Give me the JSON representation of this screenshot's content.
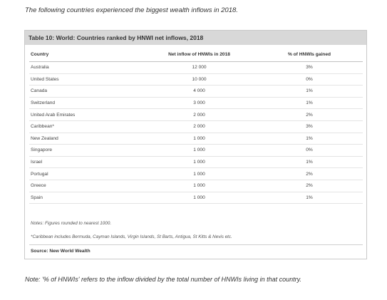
{
  "intro_text": "The following countries experienced the biggest wealth inflows in 2018.",
  "table": {
    "title": "Table 10: World: Countries ranked by HNWI net inflows, 2018",
    "headers": [
      "Country",
      "Net inflow of HNWIs in 2018",
      "% of HNWIs gained"
    ],
    "rows": [
      [
        "Australia",
        "12 000",
        "3%"
      ],
      [
        "United States",
        "10 000",
        "0%"
      ],
      [
        "Canada",
        "4 000",
        "1%"
      ],
      [
        "Switzerland",
        "3 000",
        "1%"
      ],
      [
        "United Arab Emirates",
        "2 000",
        "2%"
      ],
      [
        "Caribbean*",
        "2 000",
        "3%"
      ],
      [
        "New Zealand",
        "1 000",
        "1%"
      ],
      [
        "Singapore",
        "1 000",
        "0%"
      ],
      [
        "Israel",
        "1 000",
        "1%"
      ],
      [
        "Portugal",
        "1 000",
        "2%"
      ],
      [
        "Greece",
        "1 000",
        "2%"
      ],
      [
        "Spain",
        "1 000",
        "1%"
      ]
    ],
    "notes": "Notes: Figures rounded to nearest 1000.",
    "footnote": "*Caribbean includes Bermuda, Cayman Islands, Virgin Islands, St Barts, Antigua, St Kitts & Nevis etc.",
    "source": "Source: New World Wealth"
  },
  "bottom_note": "Note: '% of HNWIs' refers to the inflow divided by the total number of HNWIs living in that country."
}
